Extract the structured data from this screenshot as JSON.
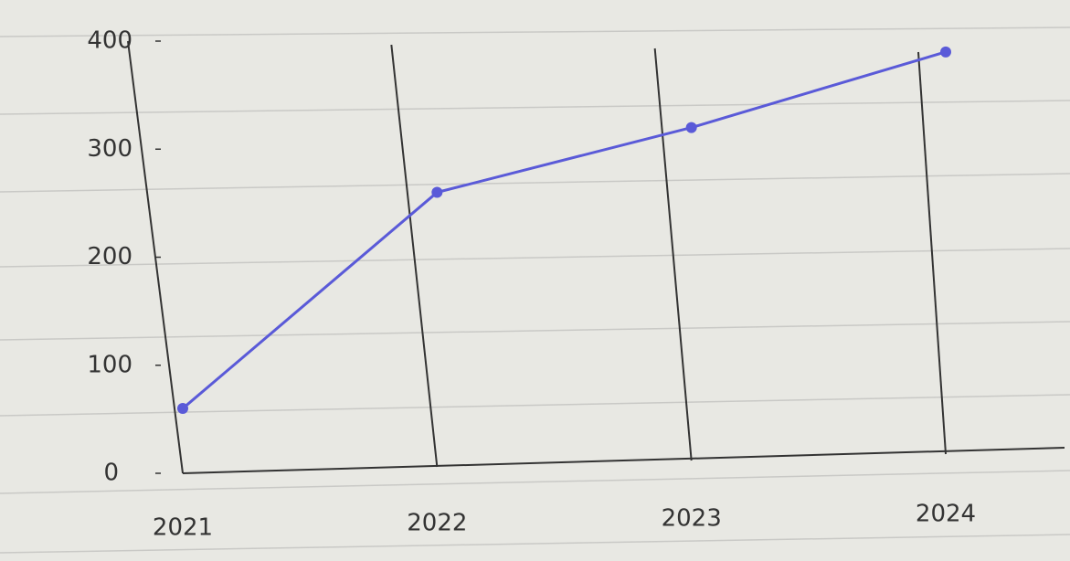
{
  "chart_data": {
    "type": "line",
    "categories": [
      "2021",
      "2022",
      "2023",
      "2024"
    ],
    "series": [
      {
        "color": "#5a5ad8",
        "values": [
          60,
          260,
          320,
          390
        ]
      }
    ],
    "ylim": [
      0,
      400
    ],
    "yticks": [
      0,
      100,
      200,
      300,
      400
    ],
    "grid": true
  }
}
